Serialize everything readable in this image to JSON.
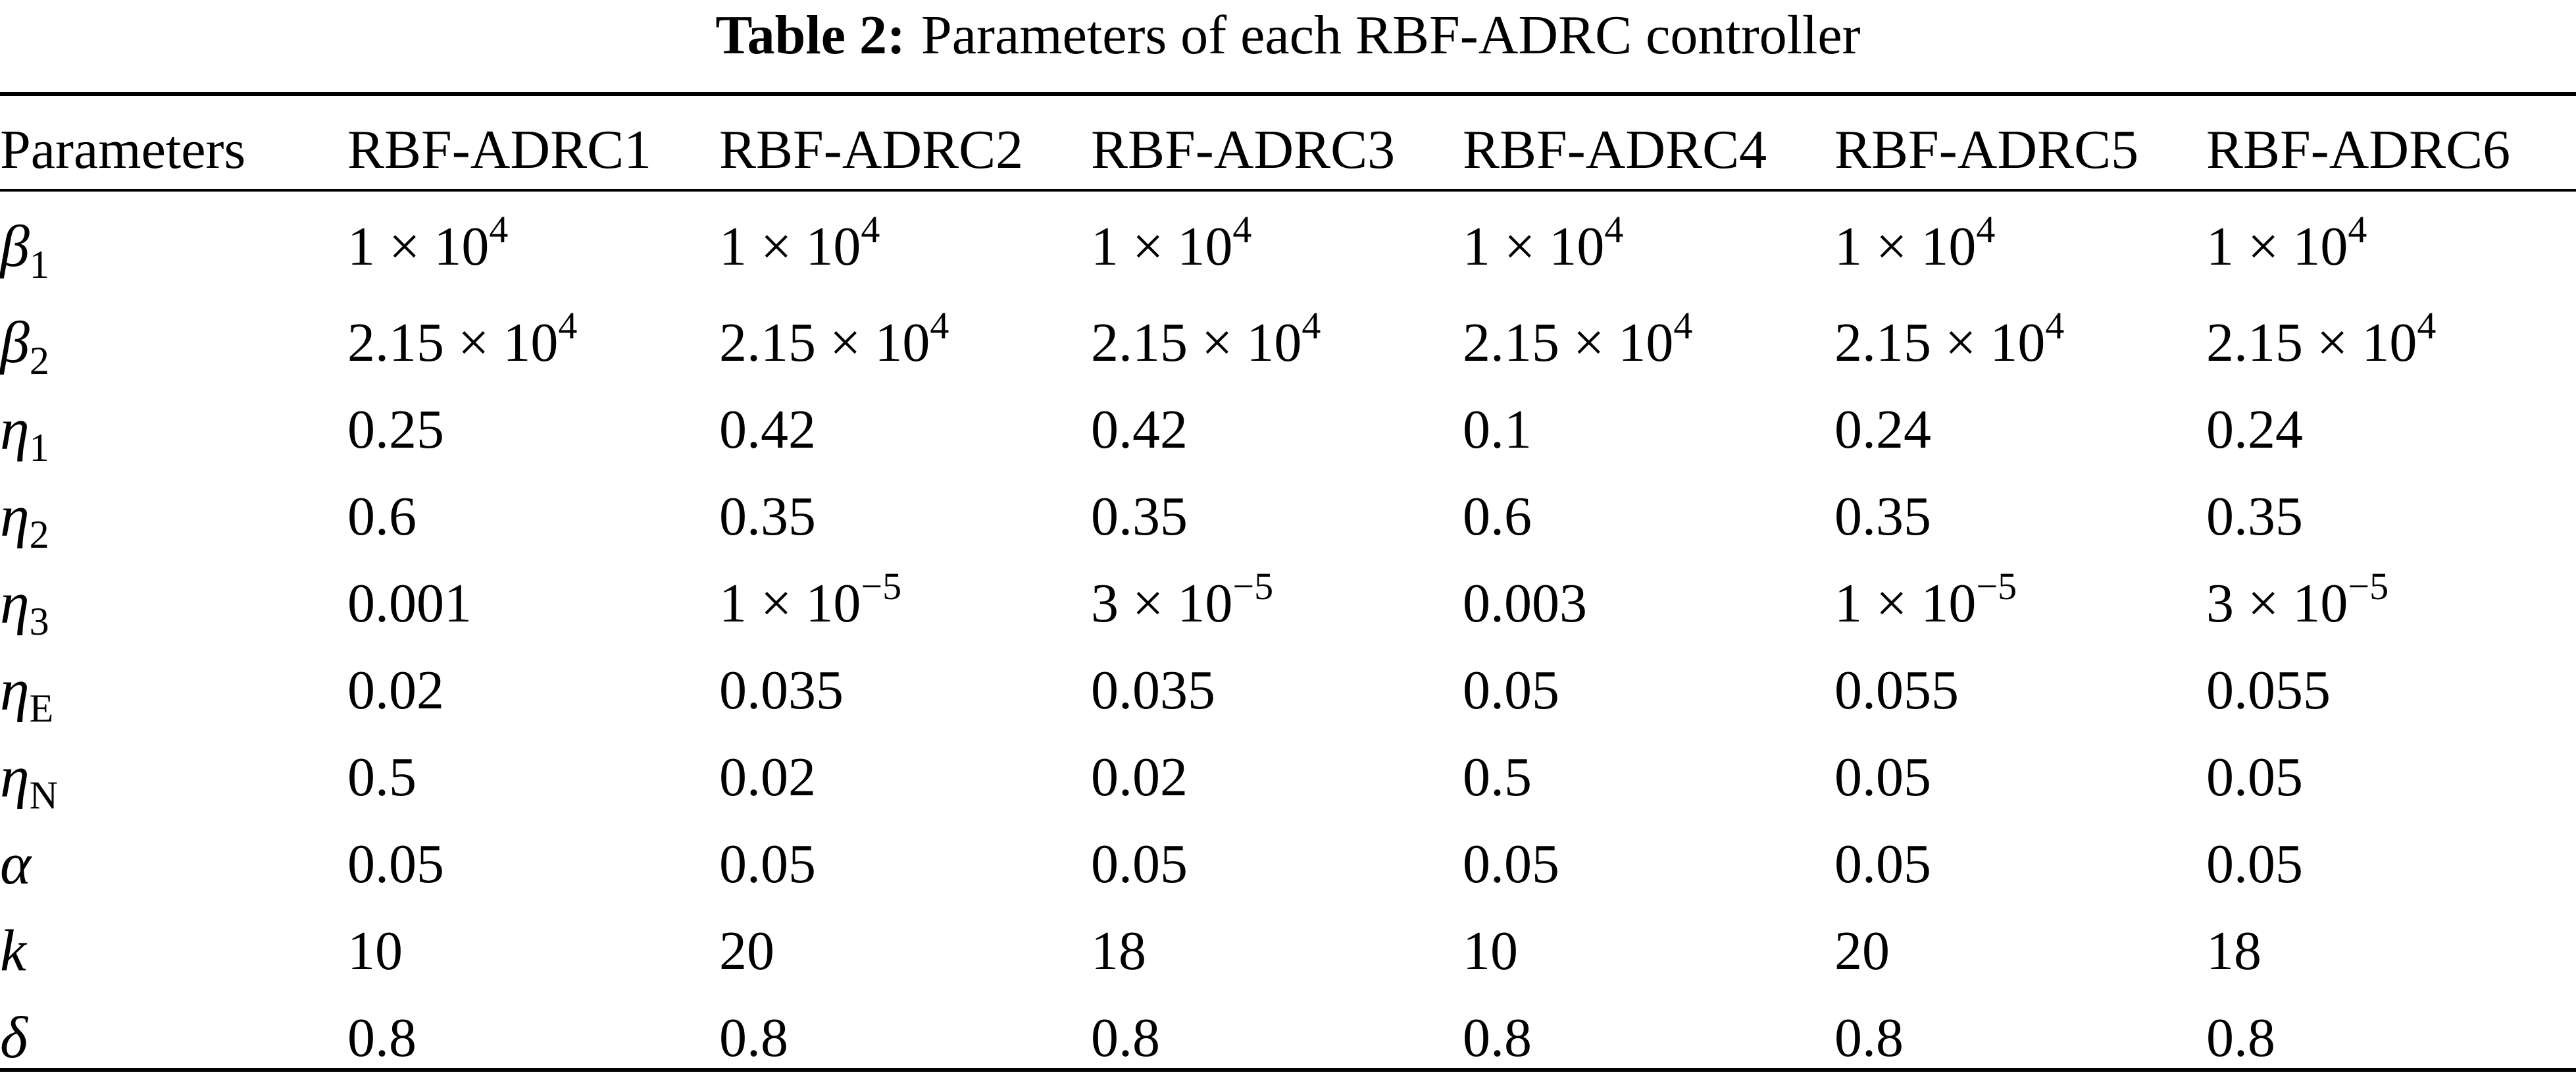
{
  "caption": {
    "label": "Table 2:",
    "text": "Parameters of each RBF-ADRC controller"
  },
  "table": {
    "header": {
      "first": "Parameters",
      "controllers": [
        "RBF-ADRC1",
        "RBF-ADRC2",
        "RBF-ADRC3",
        "RBF-ADRC4",
        "RBF-ADRC5",
        "RBF-ADRC6"
      ]
    },
    "rows": [
      {
        "symbol": "β",
        "subscript": "1",
        "values": [
          {
            "base": "1 × 10",
            "exp": "4"
          },
          {
            "base": "1 × 10",
            "exp": "4"
          },
          {
            "base": "1 × 10",
            "exp": "4"
          },
          {
            "base": "1 × 10",
            "exp": "4"
          },
          {
            "base": "1 × 10",
            "exp": "4"
          },
          {
            "base": "1 × 10",
            "exp": "4"
          }
        ]
      },
      {
        "symbol": "β",
        "subscript": "2",
        "values": [
          {
            "base": "2.15 × 10",
            "exp": "4"
          },
          {
            "base": "2.15 × 10",
            "exp": "4"
          },
          {
            "base": "2.15 × 10",
            "exp": "4"
          },
          {
            "base": "2.15 × 10",
            "exp": "4"
          },
          {
            "base": "2.15 × 10",
            "exp": "4"
          },
          {
            "base": "2.15 × 10",
            "exp": "4"
          }
        ]
      },
      {
        "symbol": "η",
        "subscript": "1",
        "values": [
          {
            "base": "0.25"
          },
          {
            "base": "0.42"
          },
          {
            "base": "0.42"
          },
          {
            "base": "0.1"
          },
          {
            "base": "0.24"
          },
          {
            "base": "0.24"
          }
        ]
      },
      {
        "symbol": "η",
        "subscript": "2",
        "values": [
          {
            "base": "0.6"
          },
          {
            "base": "0.35"
          },
          {
            "base": "0.35"
          },
          {
            "base": "0.6"
          },
          {
            "base": "0.35"
          },
          {
            "base": "0.35"
          }
        ]
      },
      {
        "symbol": "η",
        "subscript": "3",
        "values": [
          {
            "base": "0.001"
          },
          {
            "base": "1 × 10",
            "exp": "−5"
          },
          {
            "base": "3 × 10",
            "exp": "−5"
          },
          {
            "base": "0.003"
          },
          {
            "base": "1 × 10",
            "exp": "−5"
          },
          {
            "base": "3 × 10",
            "exp": "−5"
          }
        ]
      },
      {
        "symbol": "η",
        "subscript": "E",
        "values": [
          {
            "base": "0.02"
          },
          {
            "base": "0.035"
          },
          {
            "base": "0.035"
          },
          {
            "base": "0.05"
          },
          {
            "base": "0.055"
          },
          {
            "base": "0.055"
          }
        ]
      },
      {
        "symbol": "η",
        "subscript": "N",
        "values": [
          {
            "base": "0.5"
          },
          {
            "base": "0.02"
          },
          {
            "base": "0.02"
          },
          {
            "base": "0.5"
          },
          {
            "base": "0.05"
          },
          {
            "base": "0.05"
          }
        ]
      },
      {
        "symbol": "α",
        "values": [
          {
            "base": "0.05"
          },
          {
            "base": "0.05"
          },
          {
            "base": "0.05"
          },
          {
            "base": "0.05"
          },
          {
            "base": "0.05"
          },
          {
            "base": "0.05"
          }
        ]
      },
      {
        "symbol": "k",
        "values": [
          {
            "base": "10"
          },
          {
            "base": "20"
          },
          {
            "base": "18"
          },
          {
            "base": "10"
          },
          {
            "base": "20"
          },
          {
            "base": "18"
          }
        ]
      },
      {
        "symbol": "δ",
        "values": [
          {
            "base": "0.8"
          },
          {
            "base": "0.8"
          },
          {
            "base": "0.8"
          },
          {
            "base": "0.8"
          },
          {
            "base": "0.8"
          },
          {
            "base": "0.8"
          }
        ]
      }
    ]
  }
}
